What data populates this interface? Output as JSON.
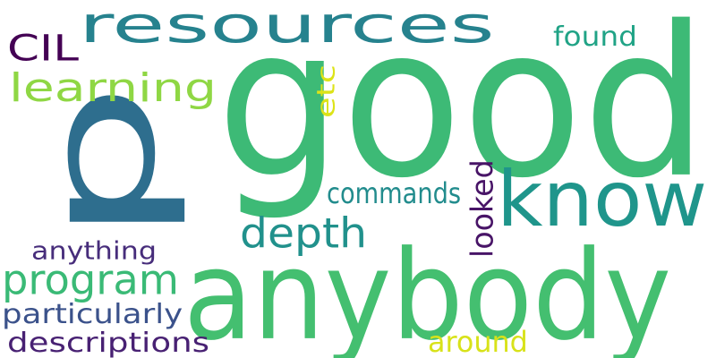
{
  "words": [
    {
      "text": "good",
      "color": "#3dba76",
      "rotated": false
    },
    {
      "text": "p",
      "color": "#2e6e8e",
      "rotated": true
    },
    {
      "text": "anybody",
      "color": "#44bf70",
      "rotated": false
    },
    {
      "text": "resources",
      "color": "#26828e",
      "rotated": false
    },
    {
      "text": "know",
      "color": "#1f958b",
      "rotated": false
    },
    {
      "text": "learning",
      "color": "#8fd744",
      "rotated": false
    },
    {
      "text": "depth",
      "color": "#21918c",
      "rotated": false
    },
    {
      "text": "CIL",
      "color": "#440154",
      "rotated": false
    },
    {
      "text": "program",
      "color": "#3aba76",
      "rotated": false
    },
    {
      "text": "commands",
      "color": "#228c8d",
      "rotated": false
    },
    {
      "text": "anything",
      "color": "#472d7b",
      "rotated": false
    },
    {
      "text": "particularly",
      "color": "#3b528b",
      "rotated": false
    },
    {
      "text": "descriptions",
      "color": "#482173",
      "rotated": false
    },
    {
      "text": "found",
      "color": "#20a386",
      "rotated": false
    },
    {
      "text": "etc",
      "color": "#dde318",
      "rotated": true
    },
    {
      "text": "looked",
      "color": "#481467",
      "rotated": true
    },
    {
      "text": "around",
      "color": "#d8e219",
      "rotated": false
    }
  ]
}
